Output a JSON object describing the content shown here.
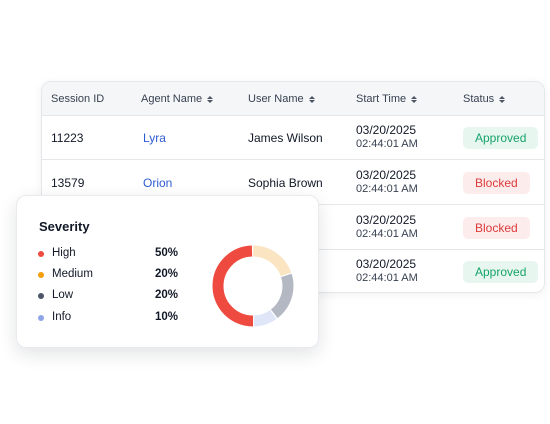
{
  "table": {
    "columns": [
      {
        "label": "Session ID",
        "sortable": false
      },
      {
        "label": "Agent Name",
        "sortable": true
      },
      {
        "label": "User Name",
        "sortable": true
      },
      {
        "label": "Start Time",
        "sortable": true
      },
      {
        "label": "Status",
        "sortable": true
      }
    ],
    "rows": [
      {
        "session_id": "11223",
        "agent": "Lyra",
        "user": "James Wilson",
        "date": "03/20/2025",
        "time": "02:44:01 AM",
        "status": "Approved"
      },
      {
        "session_id": "13579",
        "agent": "Orion",
        "user": "Sophia Brown",
        "date": "03/20/2025",
        "time": "02:44:01 AM",
        "status": "Blocked"
      },
      {
        "session_id": "",
        "agent": "",
        "user": "",
        "date": "03/20/2025",
        "time": "02:44:01 AM",
        "status": "Blocked"
      },
      {
        "session_id": "",
        "agent": "",
        "user": "",
        "date": "03/20/2025",
        "time": "02:44:01 AM",
        "status": "Approved"
      }
    ]
  },
  "status_colors": {
    "Approved": {
      "bg": "#e7f7ef",
      "fg": "#16a36a"
    },
    "Blocked": {
      "bg": "#fdecec",
      "fg": "#dc3b3b"
    }
  },
  "severity": {
    "title": "Severity",
    "items": [
      {
        "label": "High",
        "pct": "50%",
        "value": 50,
        "color": "#ee4a3f"
      },
      {
        "label": "Medium",
        "pct": "20%",
        "value": 20,
        "color": "#f59e0b"
      },
      {
        "label": "Low",
        "pct": "20%",
        "value": 20,
        "color": "#4b5563"
      },
      {
        "label": "Info",
        "pct": "10%",
        "value": 10,
        "color": "#8fa5e8"
      }
    ],
    "ring_colors": [
      "#ee4a3f",
      "#fbe4c2",
      "#b3b8c2",
      "#dfe6f8"
    ]
  }
}
